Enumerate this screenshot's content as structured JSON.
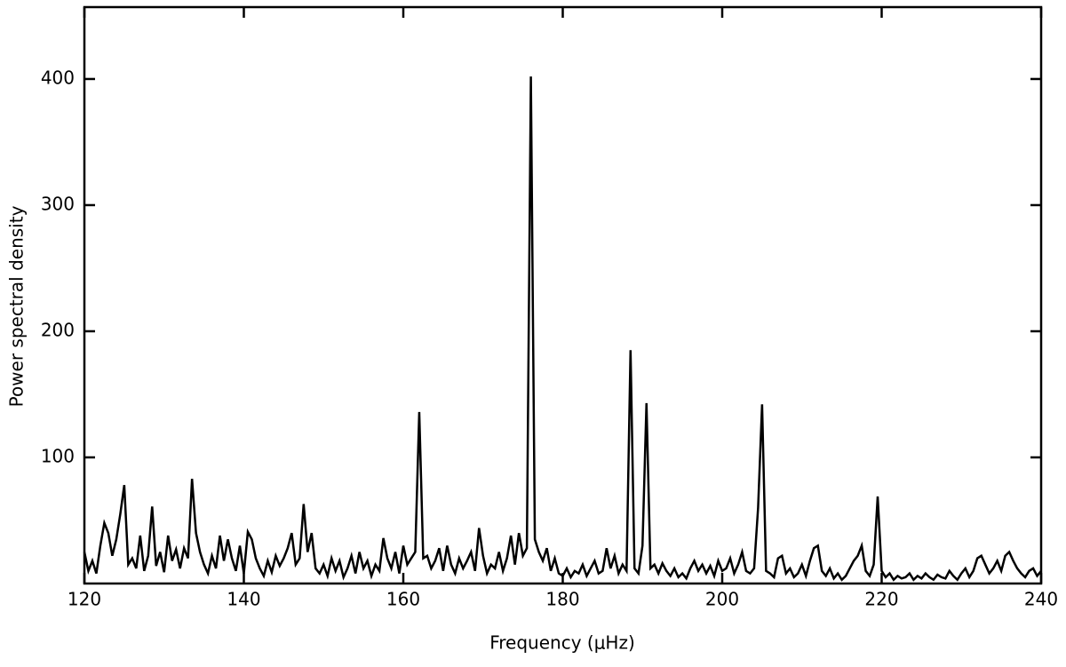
{
  "chart_data": {
    "type": "line",
    "color": "#000000",
    "x_label": "Frequency (μHz)",
    "y_label": "Power spectral density",
    "xlim": [
      120,
      240
    ],
    "ylim": [
      0,
      457
    ],
    "xticks": [
      120,
      140,
      160,
      180,
      200,
      220,
      240
    ],
    "yticks": [
      100,
      200,
      300,
      400
    ],
    "x": [
      120,
      120.5,
      121,
      121.5,
      122,
      122.5,
      123,
      123.5,
      124,
      124.5,
      125,
      125.5,
      126,
      126.5,
      127,
      127.5,
      128,
      128.5,
      129,
      129.5,
      130,
      130.5,
      131,
      131.5,
      132,
      132.5,
      133,
      133.5,
      134,
      134.5,
      135,
      135.5,
      136,
      136.5,
      137,
      137.5,
      138,
      138.5,
      139,
      139.5,
      140,
      140.5,
      141,
      141.5,
      142,
      142.5,
      143,
      143.5,
      144,
      144.5,
      145,
      145.5,
      146,
      146.5,
      147,
      147.5,
      148,
      148.5,
      149,
      149.5,
      150,
      150.5,
      151,
      151.5,
      152,
      152.5,
      153,
      153.5,
      154,
      154.5,
      155,
      155.5,
      156,
      156.5,
      157,
      157.5,
      158,
      158.5,
      159,
      159.5,
      160,
      160.5,
      161,
      161.5,
      162,
      162.5,
      163,
      163.5,
      164,
      164.5,
      165,
      165.5,
      166,
      166.5,
      167,
      167.5,
      168,
      168.5,
      169,
      169.5,
      170,
      170.5,
      171,
      171.5,
      172,
      172.5,
      173,
      173.5,
      174,
      174.5,
      175,
      175.5,
      176,
      176.5,
      177,
      177.5,
      178,
      178.5,
      179,
      179.5,
      180,
      180.5,
      181,
      181.5,
      182,
      182.5,
      183,
      183.5,
      184,
      184.5,
      185,
      185.5,
      186,
      186.5,
      187,
      187.5,
      188,
      188.5,
      189,
      189.5,
      190,
      190.5,
      191,
      191.5,
      192,
      192.5,
      193,
      193.5,
      194,
      194.5,
      195,
      195.5,
      196,
      196.5,
      197,
      197.5,
      198,
      198.5,
      199,
      199.5,
      200,
      200.5,
      201,
      201.5,
      202,
      202.5,
      203,
      203.5,
      204,
      204.5,
      205,
      205.5,
      206,
      206.5,
      207,
      207.5,
      208,
      208.5,
      209,
      209.5,
      210,
      210.5,
      211,
      211.5,
      212,
      212.5,
      213,
      213.5,
      214,
      214.5,
      215,
      215.5,
      216,
      216.5,
      217,
      217.5,
      218,
      218.5,
      219,
      219.5,
      220,
      220.5,
      221,
      221.5,
      222,
      222.5,
      223,
      223.5,
      224,
      224.5,
      225,
      225.5,
      226,
      226.5,
      227,
      227.5,
      228,
      228.5,
      229,
      229.5,
      230,
      230.5,
      231,
      231.5,
      232,
      232.5,
      233,
      233.5,
      234,
      234.5,
      235,
      235.5,
      236,
      236.5,
      237,
      237.5,
      238,
      238.5,
      239,
      239.5,
      240
    ],
    "values": [
      25,
      10,
      18,
      8,
      30,
      48,
      40,
      22,
      35,
      55,
      78,
      15,
      20,
      12,
      38,
      10,
      22,
      61,
      14,
      25,
      9,
      38,
      18,
      27,
      12,
      28,
      20,
      83,
      40,
      25,
      15,
      8,
      22,
      12,
      38,
      18,
      35,
      20,
      10,
      30,
      8,
      41,
      35,
      20,
      12,
      6,
      18,
      9,
      22,
      14,
      20,
      28,
      40,
      15,
      20,
      63,
      25,
      40,
      12,
      8,
      15,
      6,
      20,
      10,
      18,
      5,
      12,
      22,
      8,
      25,
      12,
      18,
      6,
      15,
      10,
      36,
      20,
      12,
      25,
      8,
      30,
      15,
      20,
      25,
      136,
      20,
      22,
      12,
      18,
      28,
      10,
      30,
      15,
      8,
      20,
      12,
      18,
      25,
      10,
      44,
      22,
      8,
      15,
      12,
      25,
      10,
      20,
      38,
      15,
      40,
      22,
      28,
      402,
      35,
      25,
      18,
      28,
      10,
      20,
      8,
      6,
      12,
      5,
      10,
      8,
      15,
      6,
      12,
      18,
      8,
      10,
      28,
      12,
      22,
      8,
      15,
      10,
      185,
      12,
      8,
      30,
      143,
      12,
      15,
      8,
      16,
      10,
      6,
      12,
      5,
      8,
      4,
      12,
      18,
      10,
      15,
      8,
      14,
      6,
      18,
      10,
      12,
      20,
      8,
      15,
      25,
      10,
      8,
      12,
      60,
      142,
      10,
      8,
      5,
      20,
      22,
      8,
      12,
      5,
      8,
      15,
      6,
      18,
      28,
      30,
      10,
      6,
      12,
      4,
      8,
      3,
      6,
      12,
      18,
      22,
      30,
      10,
      6,
      15,
      69,
      10,
      5,
      8,
      3,
      6,
      4,
      5,
      8,
      3,
      6,
      4,
      8,
      5,
      3,
      7,
      5,
      4,
      10,
      6,
      3,
      8,
      12,
      5,
      10,
      20,
      22,
      15,
      8,
      12,
      18,
      10,
      22,
      25,
      18,
      12,
      8,
      5,
      10,
      12,
      6,
      10
    ]
  }
}
